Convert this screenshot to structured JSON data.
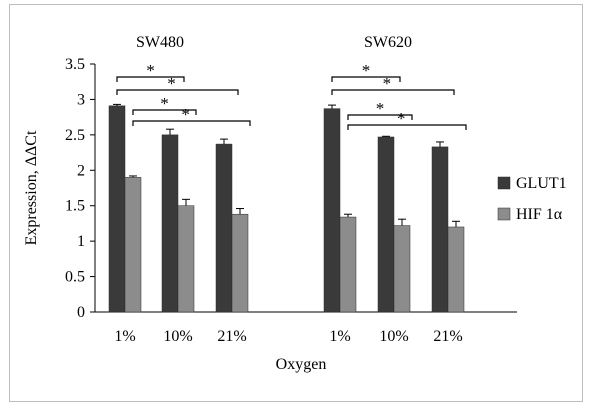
{
  "chart_data": {
    "type": "bar",
    "title": "",
    "xlabel": "Oxygen",
    "ylabel": "Expression, ΔΔCt",
    "ylim": [
      0,
      3.5
    ],
    "yticks": [
      "0",
      "0.5",
      "1",
      "1.5",
      "2",
      "2.5",
      "3",
      "3.5"
    ],
    "grid": false,
    "legend_position": "right",
    "groups": [
      {
        "name": "SW480",
        "categories": [
          "1%",
          "10%",
          "21%"
        ],
        "series": [
          {
            "name": "GLUT1",
            "values": [
              2.91,
              2.5,
              2.37
            ],
            "errors": [
              0.02,
              0.08,
              0.07
            ]
          },
          {
            "name": "HIF 1α",
            "values": [
              1.9,
              1.5,
              1.38
            ],
            "errors": [
              0.02,
              0.09,
              0.08
            ]
          }
        ]
      },
      {
        "name": "SW620",
        "categories": [
          "1%",
          "10%",
          "21%"
        ],
        "series": [
          {
            "name": "GLUT1",
            "values": [
              2.87,
              2.47,
              2.33
            ],
            "errors": [
              0.05,
              0.01,
              0.07
            ]
          },
          {
            "name": "HIF 1α",
            "values": [
              1.34,
              1.22,
              1.2
            ],
            "errors": [
              0.04,
              0.09,
              0.08
            ]
          }
        ]
      }
    ],
    "significance": [
      {
        "group": 0,
        "series": 0,
        "from": 0,
        "to": 1,
        "label": "*"
      },
      {
        "group": 0,
        "series": 0,
        "from": 0,
        "to": 2,
        "label": "*"
      },
      {
        "group": 0,
        "series": 1,
        "from": 0,
        "to": 1,
        "label": "*"
      },
      {
        "group": 0,
        "series": 1,
        "from": 0,
        "to": 2,
        "label": "*"
      },
      {
        "group": 1,
        "series": 0,
        "from": 0,
        "to": 1,
        "label": "*"
      },
      {
        "group": 1,
        "series": 0,
        "from": 0,
        "to": 2,
        "label": "*"
      },
      {
        "group": 1,
        "series": 1,
        "from": 0,
        "to": 1,
        "label": "*"
      },
      {
        "group": 1,
        "series": 1,
        "from": 0,
        "to": 2,
        "label": "*"
      }
    ],
    "colors": {
      "GLUT1": "#3a3a3a",
      "HIF 1α": "#8c8c8c"
    }
  }
}
